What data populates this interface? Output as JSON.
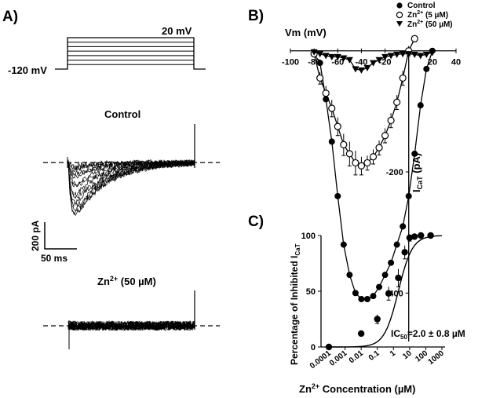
{
  "panels": {
    "a": "A)",
    "b": "B)",
    "c": "C)"
  },
  "panel_a": {
    "protocol": {
      "holding_label": "-120 mV",
      "step_label": "20 mV",
      "step_count": 7
    },
    "control_title": "Control",
    "zn_title_main": "Zn",
    "zn_title_sup": "2+",
    "zn_title_conc": " (50 µM)",
    "scale_current": "200 pA",
    "scale_time": "50 ms"
  },
  "chart_data": [
    {
      "type": "scatter",
      "xlabel": "Vm (mV)",
      "ylabel_main": "I",
      "ylabel_sub": "CaT",
      "ylabel_unit": " (pA)",
      "xlim": [
        -100,
        40
      ],
      "ylim": [
        -480,
        10
      ],
      "x_ticks": [
        -100,
        -80,
        -60,
        -40,
        -20,
        20,
        40
      ],
      "x_tick_labels": [
        "-100",
        "-80",
        "-60",
        "-40",
        "-20",
        "20",
        "40"
      ],
      "y_ticks": [
        -200,
        -400
      ],
      "y_tick_labels": [
        "-200",
        "-400"
      ],
      "legend_position": "top-right",
      "series": [
        {
          "name": "Control",
          "marker": "filled-circle",
          "x": [
            -80,
            -75,
            -70,
            -65,
            -60,
            -55,
            -50,
            -45,
            -40,
            -35,
            -30,
            -25,
            -20,
            -15,
            -10,
            -5,
            0,
            5,
            10,
            15,
            20
          ],
          "y": [
            -5,
            -20,
            -80,
            -150,
            -240,
            -320,
            -370,
            -400,
            -410,
            -410,
            -405,
            -390,
            -370,
            -350,
            -320,
            -290,
            -240,
            -170,
            -90,
            -30,
            0
          ]
        },
        {
          "name": "Zn2+ (5 µM)",
          "name_main": "Zn",
          "name_sup": "2+",
          "name_conc": " (5 µM)",
          "marker": "open-circle",
          "x": [
            -80,
            -75,
            -70,
            -65,
            -60,
            -55,
            -50,
            -45,
            -40,
            -35,
            -30,
            -25,
            -20,
            -15,
            -10,
            -5,
            0,
            5
          ],
          "y": [
            -5,
            -45,
            -70,
            -95,
            -125,
            -155,
            -170,
            -185,
            -190,
            -185,
            -175,
            -160,
            -140,
            -115,
            -85,
            -45,
            0,
            20
          ],
          "error": [
            0,
            10,
            12,
            14,
            15,
            18,
            20,
            20,
            15,
            12,
            12,
            12,
            12,
            12,
            12,
            12,
            8,
            5
          ]
        },
        {
          "name": "Zn2+ (50 µM)",
          "name_main": "Zn",
          "name_sup": "2+",
          "name_conc": " (50 µM)",
          "marker": "filled-triangle-down",
          "x": [
            -80,
            -75,
            -70,
            -65,
            -60,
            -55,
            -50,
            -45,
            -40,
            -35,
            -30,
            -25,
            -20,
            -15,
            -10,
            -5,
            0,
            5,
            10,
            15,
            20
          ],
          "y": [
            -2,
            -5,
            -8,
            -10,
            -10,
            -12,
            -15,
            -30,
            -32,
            -28,
            -20,
            -15,
            -10,
            -8,
            -6,
            -5,
            -5,
            -6,
            -8,
            -6,
            -3
          ]
        }
      ]
    },
    {
      "type": "scatter",
      "scale": "log-x",
      "xlabel_main": "Zn",
      "xlabel_sup": "2+",
      "xlabel_rest": " Concentration (µM)",
      "ylabel_main": "Percentage of Inhibited I",
      "ylabel_sub": "CaT",
      "xlim": [
        0.0001,
        1000
      ],
      "ylim": [
        0,
        100
      ],
      "x_ticks": [
        0.0001,
        0.001,
        0.01,
        0.1,
        1,
        10,
        100,
        1000
      ],
      "x_tick_labels": [
        "0.0001",
        "0.001",
        "0.01",
        "0.1",
        "1",
        "10",
        "100",
        "1000"
      ],
      "y_ticks": [
        0,
        50,
        100
      ],
      "y_tick_labels": [
        "0",
        "50",
        "100"
      ],
      "annotation_main": "IC",
      "annotation_sub": "50",
      "annotation_rest": "=2.0 ± 0.8 µM",
      "ic50": 2.0,
      "hill": 1,
      "series": [
        {
          "marker": "filled-circle",
          "x": [
            0.0001,
            0.01,
            0.1,
            0.5,
            2,
            5,
            10,
            20,
            50,
            200
          ],
          "y": [
            0,
            12,
            25,
            48,
            62,
            85,
            98,
            99,
            100,
            100
          ],
          "error": [
            0,
            2,
            4,
            6,
            8,
            6,
            3,
            0,
            0,
            0
          ]
        }
      ]
    }
  ]
}
